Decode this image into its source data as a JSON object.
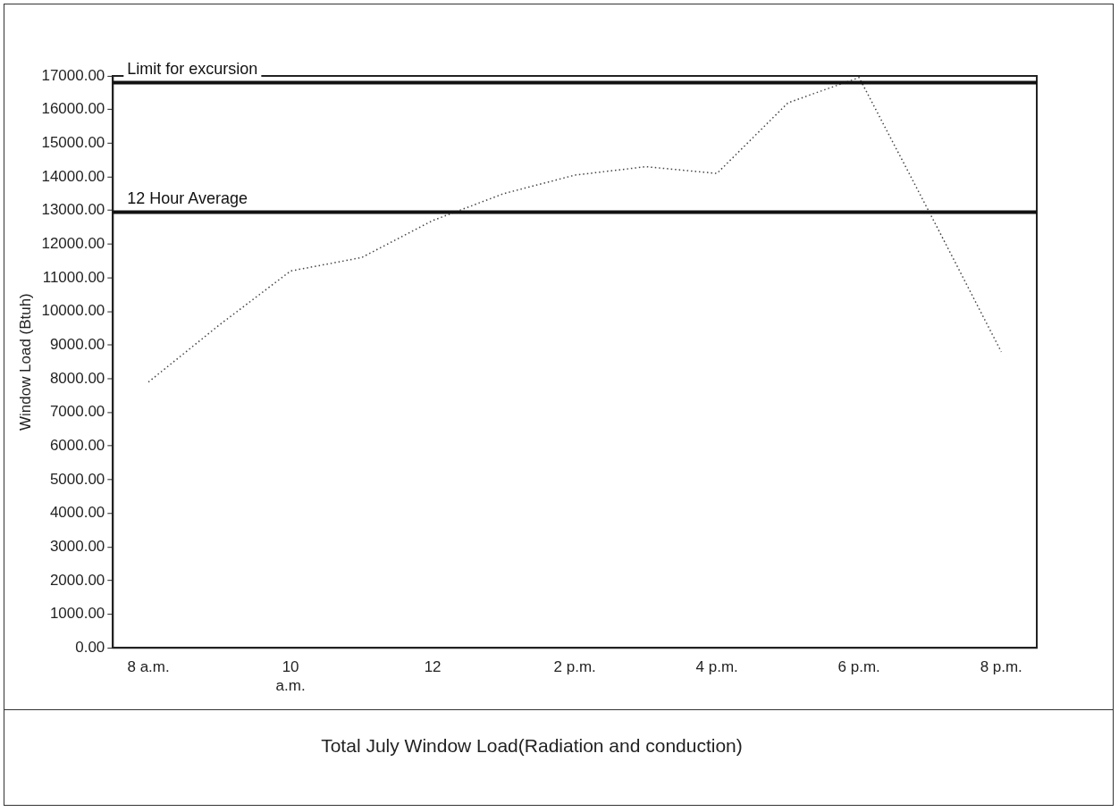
{
  "chart_data": {
    "type": "line",
    "title": "Total July Window Load(Radiation and conduction)",
    "ylabel": "Window Load (Btuh)",
    "categories": [
      "8 a.m.",
      null,
      "10 a.m.",
      null,
      "12",
      null,
      "2 p.m.",
      null,
      "4 p.m.",
      null,
      "6 p.m.",
      null,
      "8 p.m."
    ],
    "series": [
      {
        "color": "#444444",
        "values": [
          7900,
          9600,
          11200,
          11600,
          12700,
          13500,
          14050,
          14300,
          14100,
          16200,
          16950,
          12900,
          8800
        ]
      }
    ],
    "ylim": [
      0,
      17000
    ],
    "yticks": [
      {
        "value": 0,
        "label": "0.00"
      },
      {
        "value": 1000,
        "label": "1000.00"
      },
      {
        "value": 2000,
        "label": "2000.00"
      },
      {
        "value": 3000,
        "label": "3000.00"
      },
      {
        "value": 4000,
        "label": "4000.00"
      },
      {
        "value": 5000,
        "label": "5000.00"
      },
      {
        "value": 6000,
        "label": "6000.00"
      },
      {
        "value": 7000,
        "label": "7000.00"
      },
      {
        "value": 8000,
        "label": "8000.00"
      },
      {
        "value": 9000,
        "label": "9000.00"
      },
      {
        "value": 10000,
        "label": "10000.00"
      },
      {
        "value": 11000,
        "label": "11000.00"
      },
      {
        "value": 12000,
        "label": "12000.00"
      },
      {
        "value": 13000,
        "label": "13000.00"
      },
      {
        "value": 14000,
        "label": "14000.00"
      },
      {
        "value": 15000,
        "label": "15000.00"
      },
      {
        "value": 16000,
        "label": "16000.00"
      },
      {
        "value": 17000,
        "label": "17000.00"
      }
    ],
    "ref_lines": [
      {
        "axis": "y",
        "value": 16800,
        "label": "Limit for excursion",
        "color": "#111111"
      },
      {
        "axis": "y",
        "value": 12950,
        "label": "12 Hour Average",
        "color": "#111111"
      }
    ],
    "grid": false,
    "legend": false,
    "marker": "none",
    "line_style": "dotted"
  }
}
